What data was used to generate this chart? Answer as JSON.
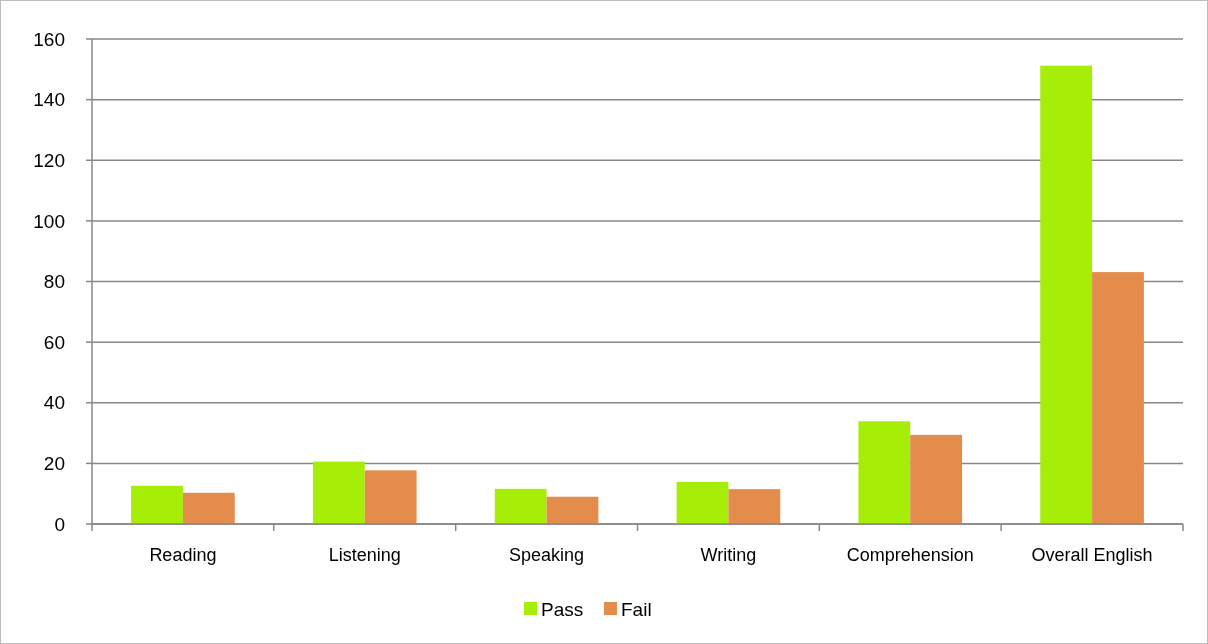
{
  "chart_data": {
    "type": "bar",
    "categories": [
      "Reading",
      "Listening",
      "Speaking",
      "Writing",
      "Comprehension",
      "Overall English"
    ],
    "series": [
      {
        "name": "Pass",
        "color": "#a6ed08",
        "values": [
          12.6,
          20.6,
          11.6,
          13.9,
          33.9,
          151.2
        ]
      },
      {
        "name": "Fail",
        "color": "#e38c4c",
        "values": [
          10.3,
          17.7,
          9.0,
          11.5,
          29.4,
          83.1
        ]
      }
    ],
    "ylim": [
      0,
      160
    ],
    "yticks": [
      0,
      20,
      40,
      60,
      80,
      100,
      120,
      140,
      160
    ],
    "grid": "y",
    "legend": "bottom"
  }
}
